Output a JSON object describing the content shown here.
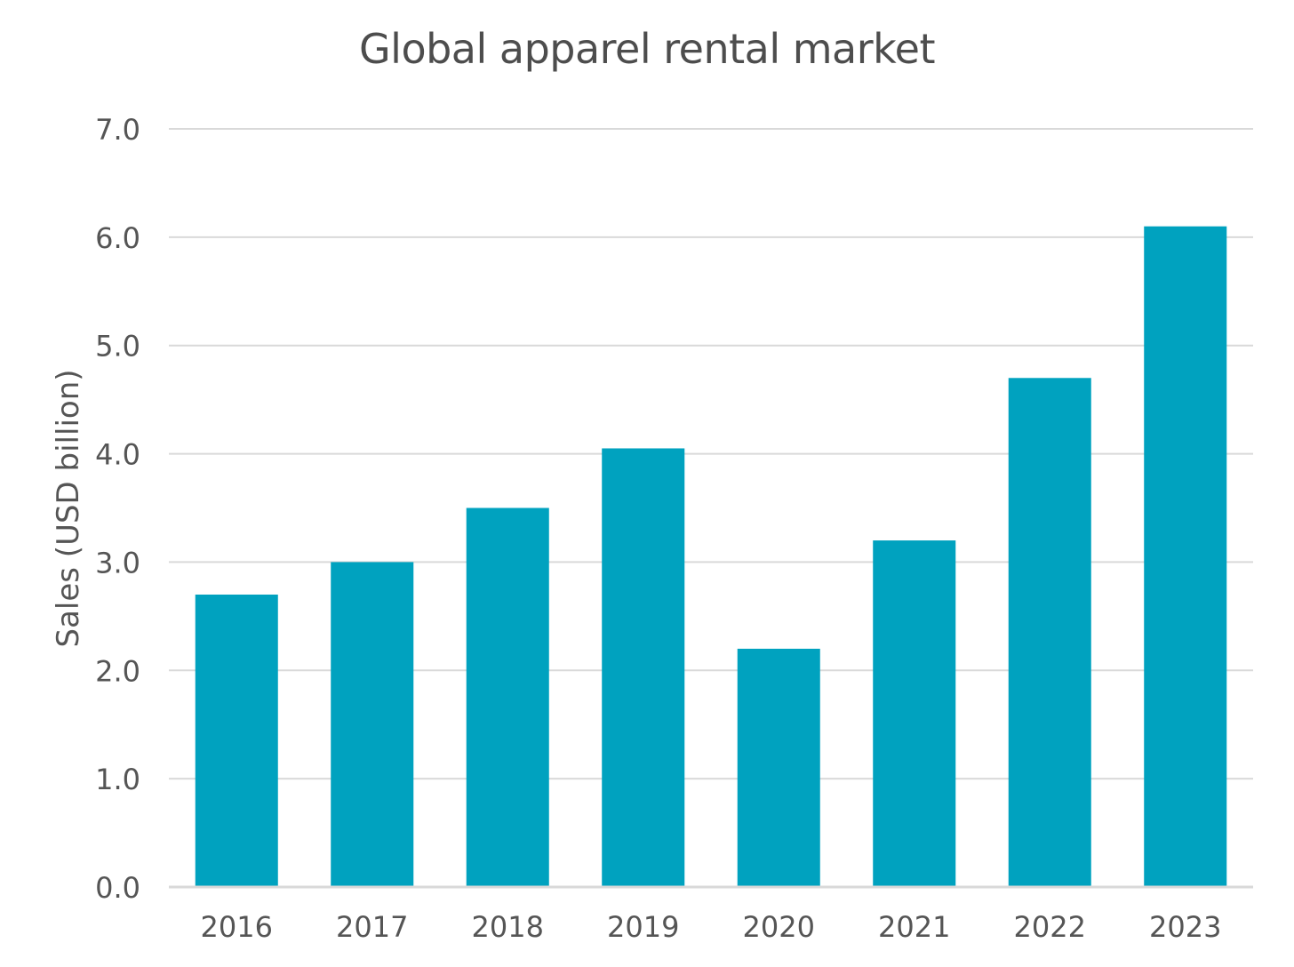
{
  "chart_data": {
    "type": "bar",
    "title": "Global apparel rental market",
    "xlabel": "",
    "ylabel": "Sales (USD billion)",
    "categories": [
      "2016",
      "2017",
      "2018",
      "2019",
      "2020",
      "2021",
      "2022",
      "2023"
    ],
    "values": [
      2.7,
      3.0,
      3.5,
      4.05,
      2.2,
      3.2,
      4.7,
      6.1
    ],
    "ylim": [
      0,
      7
    ],
    "yticks": [
      "0.0",
      "1.0",
      "2.0",
      "3.0",
      "4.0",
      "5.0",
      "6.0",
      "7.0"
    ],
    "grid": true,
    "legend": "none",
    "bar_color": "#00a2bf",
    "grid_color": "#d9d9d9"
  }
}
